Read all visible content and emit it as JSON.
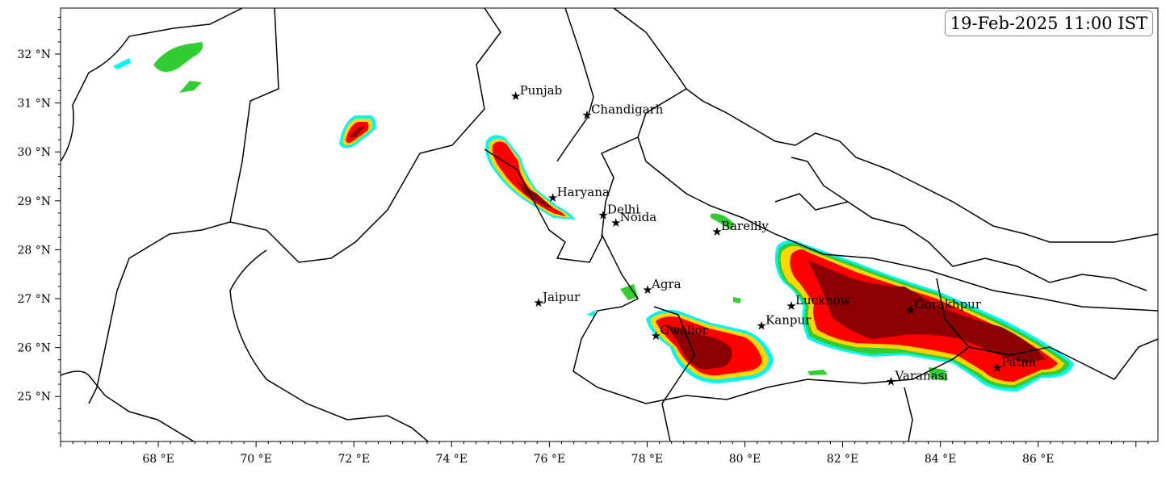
{
  "title": "19-Feb-2025 11:00 IST",
  "map": {
    "extent": {
      "lon": [
        66,
        88.45
      ],
      "lat": [
        24.08,
        32.94
      ]
    },
    "lon_ticks": [
      68,
      70,
      72,
      74,
      76,
      78,
      80,
      82,
      84,
      86
    ],
    "lat_ticks": [
      25,
      26,
      27,
      28,
      29,
      30,
      31,
      32
    ],
    "lon_labels": [
      "68 °E",
      "70 °E",
      "72 °E",
      "74 °E",
      "76 °E",
      "78 °E",
      "80 °E",
      "82 °E",
      "84 °E",
      "86 °E"
    ],
    "lat_labels": [
      "25 °N",
      "26 °N",
      "27 °N",
      "28 °N",
      "29 °N",
      "30 °N",
      "31 °N",
      "32 °N"
    ],
    "contour_colors": [
      "#00f5f5",
      "#32cd32",
      "#ffd700",
      "#ff0000",
      "#8b0000"
    ],
    "cities": [
      {
        "name": "Punjab",
        "lon": 75.31,
        "lat": 31.14
      },
      {
        "name": "Chandigarh",
        "lon": 76.77,
        "lat": 30.75
      },
      {
        "name": "Haryana",
        "lon": 76.07,
        "lat": 29.06
      },
      {
        "name": "Delhi",
        "lon": 77.1,
        "lat": 28.71
      },
      {
        "name": "Noida",
        "lon": 77.36,
        "lat": 28.55
      },
      {
        "name": "Bareilly",
        "lon": 79.43,
        "lat": 28.37
      },
      {
        "name": "Agra",
        "lon": 78.01,
        "lat": 27.18
      },
      {
        "name": "Jaipur",
        "lon": 75.78,
        "lat": 26.92
      },
      {
        "name": "Lucknow",
        "lon": 80.95,
        "lat": 26.85
      },
      {
        "name": "Gorakhpur",
        "lon": 83.39,
        "lat": 26.77
      },
      {
        "name": "Kanpur",
        "lon": 80.34,
        "lat": 26.45
      },
      {
        "name": "Gwalior",
        "lon": 78.18,
        "lat": 26.24
      },
      {
        "name": "Patna",
        "lon": 85.16,
        "lat": 25.59
      },
      {
        "name": "Varanasi",
        "lon": 82.99,
        "lat": 25.31
      }
    ]
  }
}
